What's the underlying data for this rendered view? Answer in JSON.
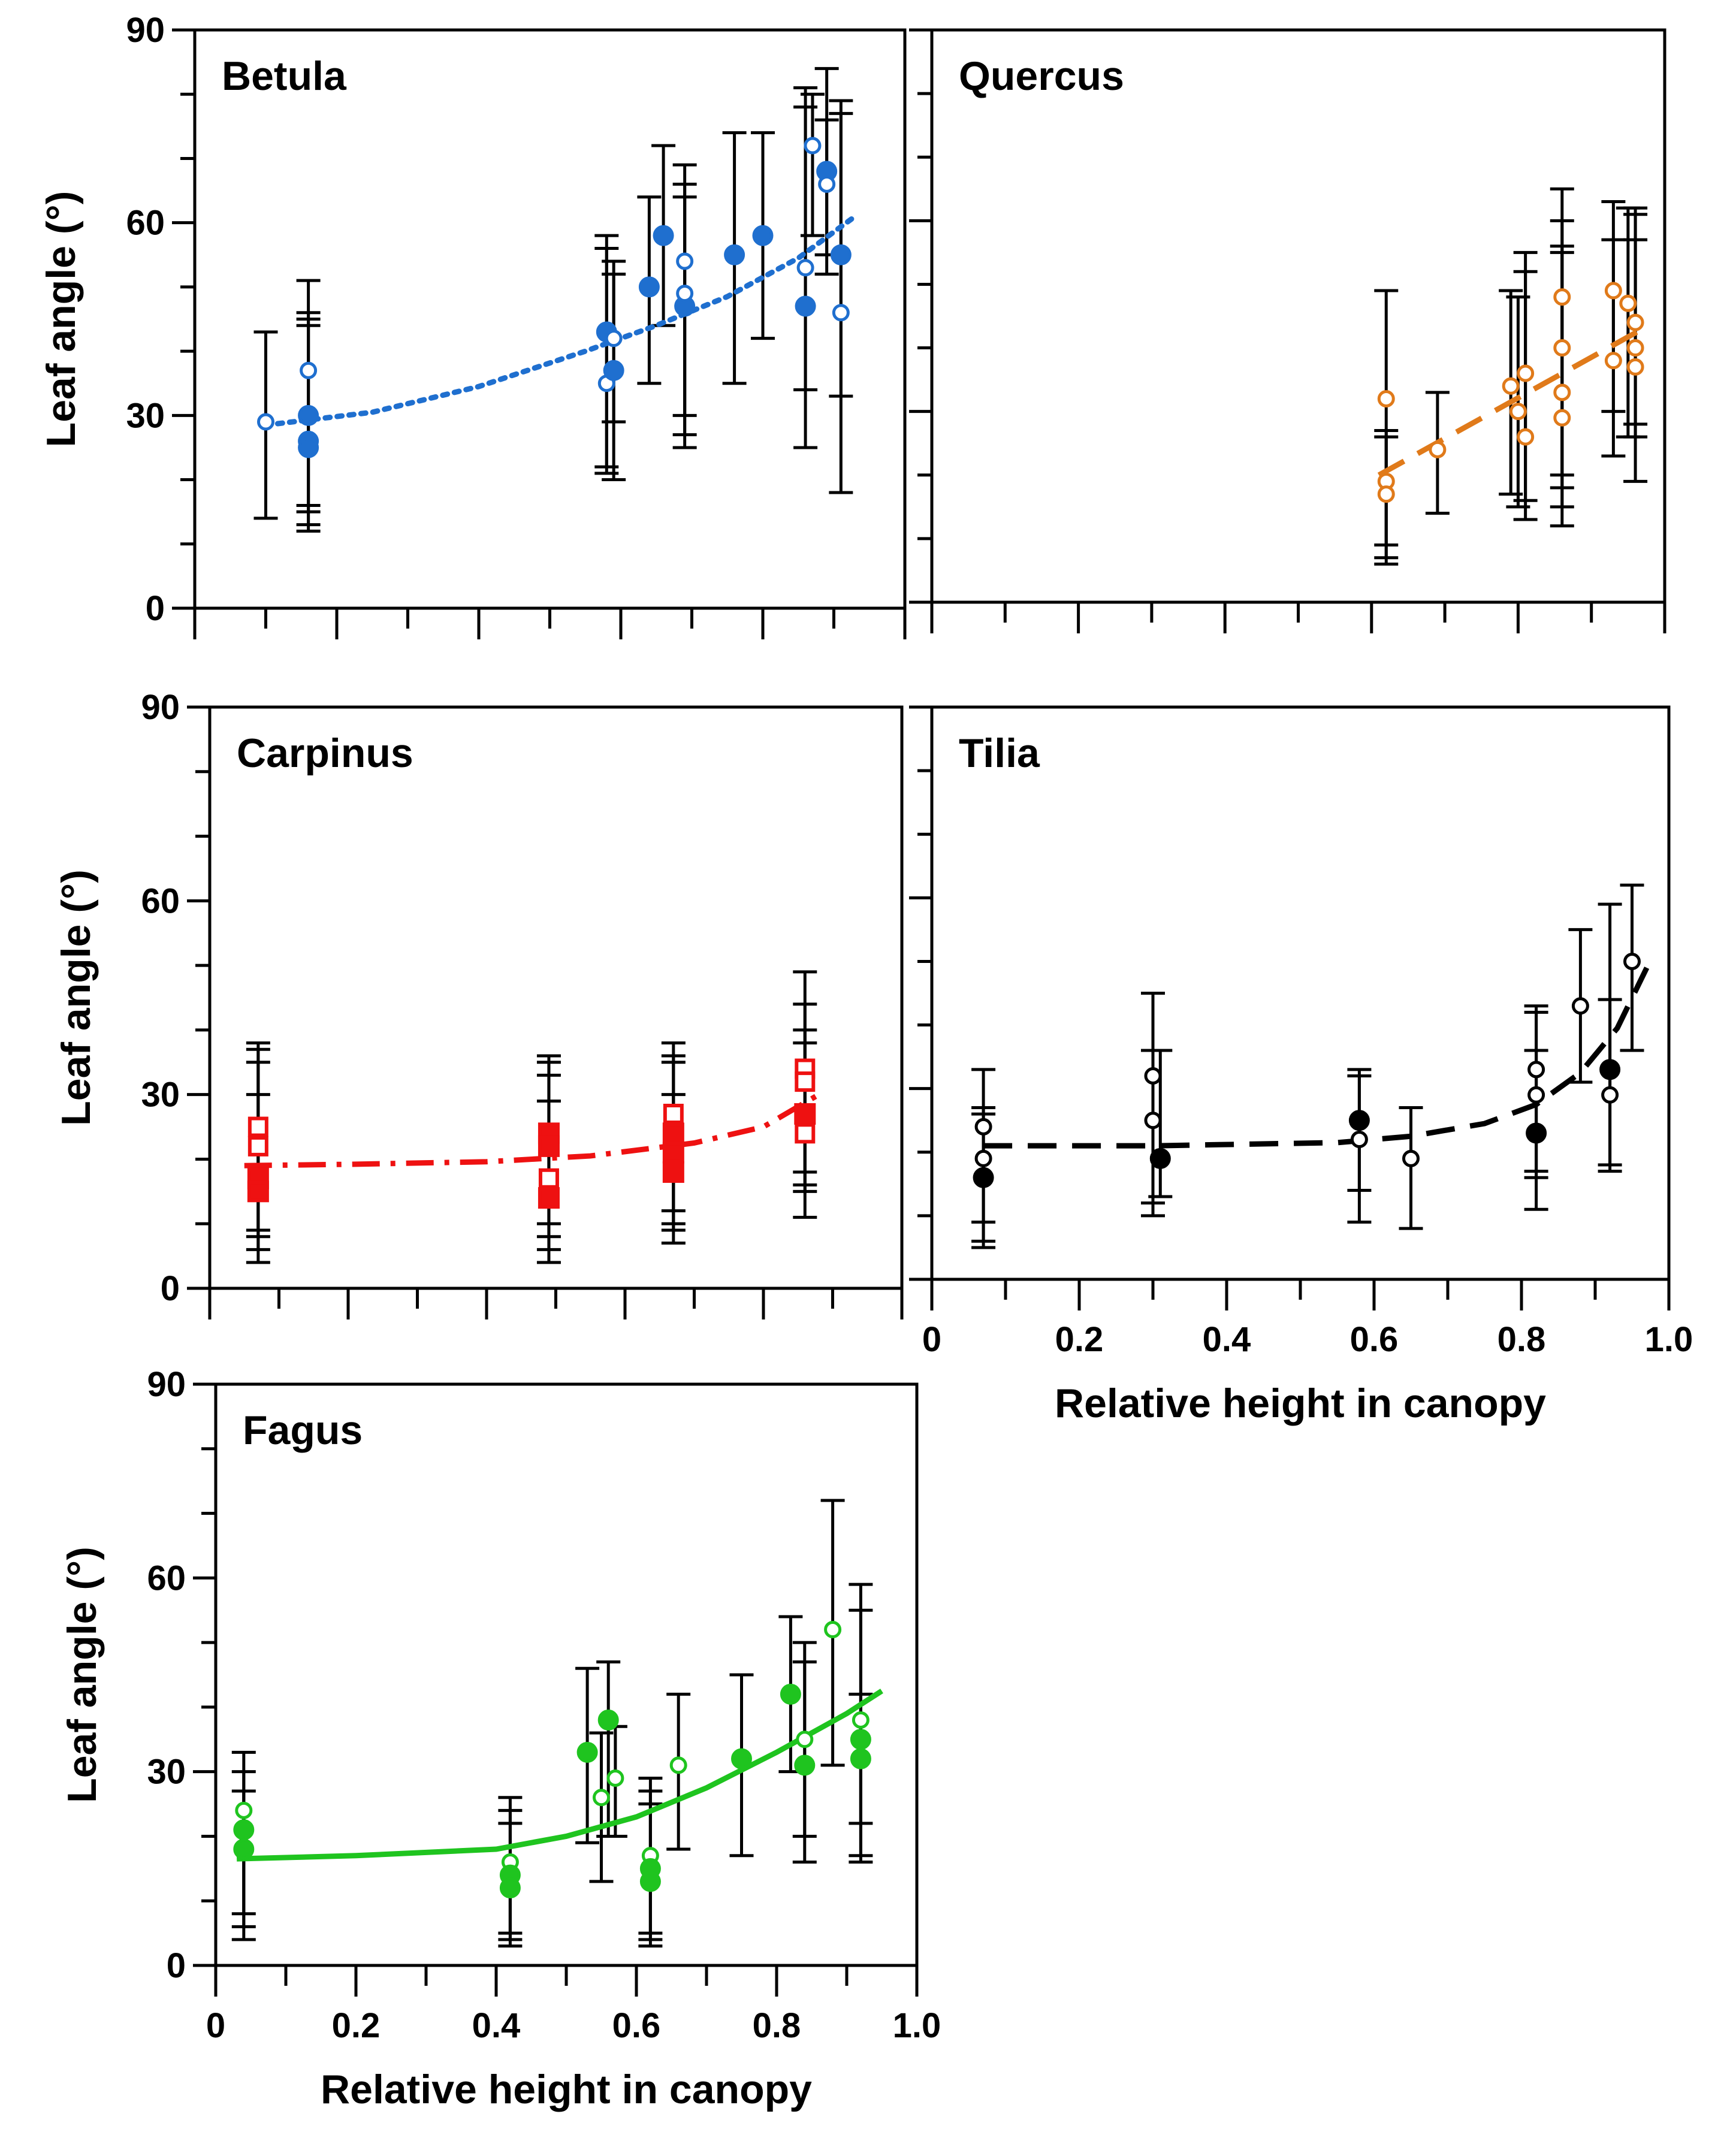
{
  "chart_data": [
    {
      "type": "scatter",
      "title": "Betula",
      "xlabel": "",
      "ylabel": "Leaf angle (°)",
      "xlim": [
        0,
        1.0
      ],
      "ylim": [
        0,
        90
      ],
      "yticks": [
        0,
        30,
        60,
        90
      ],
      "xticks": [],
      "grid": false,
      "colors": {
        "marker": "#1f6fcf",
        "error": "#000000"
      },
      "fit_style": "dotted",
      "points": [
        {
          "x": 0.1,
          "y": 29,
          "lo": 14,
          "hi": 43,
          "filled": false
        },
        {
          "x": 0.16,
          "y": 37,
          "lo": 16,
          "hi": 51,
          "filled": false
        },
        {
          "x": 0.16,
          "y": 30,
          "lo": 13,
          "hi": 46,
          "filled": true
        },
        {
          "x": 0.16,
          "y": 26,
          "lo": 15,
          "hi": 45,
          "filled": true
        },
        {
          "x": 0.16,
          "y": 25,
          "lo": 12,
          "hi": 44,
          "filled": true
        },
        {
          "x": 0.58,
          "y": 43,
          "lo": 22,
          "hi": 58,
          "filled": true
        },
        {
          "x": 0.58,
          "y": 35,
          "lo": 21,
          "hi": 56,
          "filled": false
        },
        {
          "x": 0.59,
          "y": 37,
          "lo": 20,
          "hi": 54,
          "filled": true
        },
        {
          "x": 0.59,
          "y": 42,
          "lo": 29,
          "hi": 52,
          "filled": false
        },
        {
          "x": 0.64,
          "y": 50,
          "lo": 35,
          "hi": 64,
          "filled": true
        },
        {
          "x": 0.66,
          "y": 58,
          "lo": 44,
          "hi": 72,
          "filled": true
        },
        {
          "x": 0.69,
          "y": 47,
          "lo": 25,
          "hi": 69,
          "filled": true
        },
        {
          "x": 0.69,
          "y": 54,
          "lo": 27,
          "hi": 64,
          "filled": false
        },
        {
          "x": 0.69,
          "y": 49,
          "lo": 30,
          "hi": 66,
          "filled": false
        },
        {
          "x": 0.76,
          "y": 55,
          "lo": 35,
          "hi": 74,
          "filled": true
        },
        {
          "x": 0.8,
          "y": 58,
          "lo": 42,
          "hi": 74,
          "filled": true
        },
        {
          "x": 0.86,
          "y": 53,
          "lo": 25,
          "hi": 81,
          "filled": false
        },
        {
          "x": 0.86,
          "y": 47,
          "lo": 34,
          "hi": 78,
          "filled": true
        },
        {
          "x": 0.87,
          "y": 72,
          "lo": 58,
          "hi": 80,
          "filled": false
        },
        {
          "x": 0.89,
          "y": 68,
          "lo": 52,
          "hi": 84,
          "filled": true
        },
        {
          "x": 0.89,
          "y": 66,
          "lo": 55,
          "hi": 76,
          "filled": false
        },
        {
          "x": 0.91,
          "y": 55,
          "lo": 33,
          "hi": 77,
          "filled": true
        },
        {
          "x": 0.91,
          "y": 46,
          "lo": 18,
          "hi": 79,
          "filled": false
        }
      ],
      "fit": {
        "x": [
          0.1,
          0.25,
          0.4,
          0.55,
          0.65,
          0.75,
          0.85,
          0.93
        ],
        "y": [
          28.5,
          30.5,
          34.5,
          40,
          44,
          48.5,
          54.5,
          61
        ]
      }
    },
    {
      "type": "scatter",
      "title": "Quercus",
      "xlabel": "",
      "ylabel": "",
      "xlim": [
        0,
        1.0
      ],
      "ylim": [
        0,
        90
      ],
      "yticks": [],
      "xticks": [],
      "grid": false,
      "colors": {
        "marker": "#e07a1a",
        "error": "#000000"
      },
      "fit_style": "dashed",
      "points": [
        {
          "x": 0.62,
          "y": 32,
          "lo": 6,
          "hi": 49,
          "filled": false
        },
        {
          "x": 0.62,
          "y": 19,
          "lo": 9,
          "hi": 27,
          "filled": false
        },
        {
          "x": 0.62,
          "y": 17,
          "lo": 7,
          "hi": 26,
          "filled": false
        },
        {
          "x": 0.69,
          "y": 24,
          "lo": 14,
          "hi": 33,
          "filled": false
        },
        {
          "x": 0.79,
          "y": 34,
          "lo": 17,
          "hi": 49,
          "filled": false
        },
        {
          "x": 0.8,
          "y": 30,
          "lo": 15,
          "hi": 48,
          "filled": false
        },
        {
          "x": 0.81,
          "y": 36,
          "lo": 16,
          "hi": 55,
          "filled": false
        },
        {
          "x": 0.81,
          "y": 26,
          "lo": 13,
          "hi": 52,
          "filled": false
        },
        {
          "x": 0.86,
          "y": 48,
          "lo": 12,
          "hi": 65,
          "filled": false
        },
        {
          "x": 0.86,
          "y": 40,
          "lo": 20,
          "hi": 60,
          "filled": false
        },
        {
          "x": 0.86,
          "y": 33,
          "lo": 18,
          "hi": 56,
          "filled": false
        },
        {
          "x": 0.86,
          "y": 29,
          "lo": 15,
          "hi": 55,
          "filled": false
        },
        {
          "x": 0.93,
          "y": 49,
          "lo": 23,
          "hi": 63,
          "filled": false
        },
        {
          "x": 0.93,
          "y": 38,
          "lo": 30,
          "hi": 57,
          "filled": false
        },
        {
          "x": 0.95,
          "y": 47,
          "lo": 26,
          "hi": 62,
          "filled": false
        },
        {
          "x": 0.96,
          "y": 44,
          "lo": 19,
          "hi": 62,
          "filled": false
        },
        {
          "x": 0.96,
          "y": 40,
          "lo": 28,
          "hi": 61,
          "filled": false
        },
        {
          "x": 0.96,
          "y": 37,
          "lo": 26,
          "hi": 57,
          "filled": false
        }
      ],
      "fit": {
        "x": [
          0.61,
          0.97
        ],
        "y": [
          20,
          43
        ]
      }
    },
    {
      "type": "scatter",
      "title": "Carpinus",
      "xlabel": "",
      "ylabel": "Leaf angle (°)",
      "xlim": [
        0,
        1.0
      ],
      "ylim": [
        0,
        90
      ],
      "yticks": [
        0,
        30,
        60,
        90
      ],
      "xticks": [],
      "grid": false,
      "colors": {
        "marker": "#ee1111",
        "error": "#000000"
      },
      "fit_style": "dashdot",
      "points": [
        {
          "x": 0.07,
          "y": 25,
          "lo": 6,
          "hi": 38,
          "filled": false
        },
        {
          "x": 0.07,
          "y": 22,
          "lo": 8,
          "hi": 35,
          "filled": false
        },
        {
          "x": 0.07,
          "y": 17,
          "lo": 4,
          "hi": 37,
          "filled": true
        },
        {
          "x": 0.07,
          "y": 15,
          "lo": 9,
          "hi": 30,
          "filled": true
        },
        {
          "x": 0.49,
          "y": 24,
          "lo": 6,
          "hi": 36,
          "filled": true
        },
        {
          "x": 0.49,
          "y": 22,
          "lo": 8,
          "hi": 33,
          "filled": true
        },
        {
          "x": 0.49,
          "y": 17,
          "lo": 4,
          "hi": 35,
          "filled": false
        },
        {
          "x": 0.49,
          "y": 14,
          "lo": 10,
          "hi": 29,
          "filled": true
        },
        {
          "x": 0.67,
          "y": 27,
          "lo": 7,
          "hi": 38,
          "filled": false
        },
        {
          "x": 0.67,
          "y": 24,
          "lo": 10,
          "hi": 36,
          "filled": true
        },
        {
          "x": 0.67,
          "y": 21,
          "lo": 9,
          "hi": 35,
          "filled": true
        },
        {
          "x": 0.67,
          "y": 18,
          "lo": 12,
          "hi": 30,
          "filled": true
        },
        {
          "x": 0.86,
          "y": 34,
          "lo": 16,
          "hi": 49,
          "filled": false
        },
        {
          "x": 0.86,
          "y": 32,
          "lo": 18,
          "hi": 44,
          "filled": false
        },
        {
          "x": 0.86,
          "y": 27,
          "lo": 11,
          "hi": 40,
          "filled": true
        },
        {
          "x": 0.86,
          "y": 24,
          "lo": 15,
          "hi": 38,
          "filled": false
        }
      ],
      "fit": {
        "x": [
          0.05,
          0.2,
          0.4,
          0.55,
          0.7,
          0.8,
          0.88
        ],
        "y": [
          19,
          19.2,
          19.6,
          20.5,
          22.5,
          25,
          30
        ]
      }
    },
    {
      "type": "scatter",
      "title": "Tilia",
      "xlabel": "Relative height in canopy",
      "ylabel": "",
      "xlim": [
        0,
        1.0
      ],
      "ylim": [
        0,
        90
      ],
      "yticks": [],
      "xticks": [
        0,
        0.2,
        0.4,
        0.6,
        0.8,
        1.0
      ],
      "xtick_labels": [
        "0",
        "0.2",
        "0.4",
        "0.6",
        "0.8",
        "1.0"
      ],
      "grid": false,
      "colors": {
        "marker": "#000000",
        "error": "#000000"
      },
      "fit_style": "dashed",
      "points": [
        {
          "x": 0.07,
          "y": 24,
          "lo": 9,
          "hi": 33,
          "filled": false
        },
        {
          "x": 0.07,
          "y": 19,
          "lo": 5,
          "hi": 26,
          "filled": false
        },
        {
          "x": 0.07,
          "y": 16,
          "lo": 6,
          "hi": 27,
          "filled": true
        },
        {
          "x": 0.3,
          "y": 32,
          "lo": 12,
          "hi": 45,
          "filled": false
        },
        {
          "x": 0.3,
          "y": 25,
          "lo": 10,
          "hi": 36,
          "filled": false
        },
        {
          "x": 0.31,
          "y": 19,
          "lo": 13,
          "hi": 36,
          "filled": true
        },
        {
          "x": 0.58,
          "y": 25,
          "lo": 9,
          "hi": 33,
          "filled": true
        },
        {
          "x": 0.58,
          "y": 22,
          "lo": 14,
          "hi": 32,
          "filled": false
        },
        {
          "x": 0.65,
          "y": 19,
          "lo": 8,
          "hi": 27,
          "filled": false
        },
        {
          "x": 0.82,
          "y": 33,
          "lo": 11,
          "hi": 43,
          "filled": false
        },
        {
          "x": 0.82,
          "y": 29,
          "lo": 16,
          "hi": 42,
          "filled": false
        },
        {
          "x": 0.82,
          "y": 23,
          "lo": 17,
          "hi": 36,
          "filled": true
        },
        {
          "x": 0.88,
          "y": 43,
          "lo": 31,
          "hi": 55,
          "filled": false
        },
        {
          "x": 0.92,
          "y": 33,
          "lo": 18,
          "hi": 59,
          "filled": true
        },
        {
          "x": 0.92,
          "y": 29,
          "lo": 17,
          "hi": 44,
          "filled": false
        },
        {
          "x": 0.95,
          "y": 50,
          "lo": 36,
          "hi": 62,
          "filled": false
        }
      ],
      "fit": {
        "x": [
          0.07,
          0.3,
          0.55,
          0.65,
          0.75,
          0.82,
          0.88,
          0.93,
          0.97
        ],
        "y": [
          21,
          21,
          21.5,
          22.5,
          24.5,
          27.5,
          32.5,
          39.5,
          49
        ]
      }
    },
    {
      "type": "scatter",
      "title": "Fagus",
      "xlabel": "Relative height in canopy",
      "ylabel": "Leaf angle (°)",
      "xlim": [
        0,
        1.0
      ],
      "ylim": [
        0,
        90
      ],
      "yticks": [
        0,
        30,
        60,
        90
      ],
      "xticks": [
        0,
        0.2,
        0.4,
        0.6,
        0.8,
        1.0
      ],
      "xtick_labels": [
        "0",
        "0.2",
        "0.4",
        "0.6",
        "0.8",
        "1.0"
      ],
      "grid": false,
      "colors": {
        "marker": "#1fc41f",
        "error": "#000000"
      },
      "fit_style": "solid",
      "points": [
        {
          "x": 0.04,
          "y": 24,
          "lo": 8,
          "hi": 33,
          "filled": false
        },
        {
          "x": 0.04,
          "y": 21,
          "lo": 4,
          "hi": 30,
          "filled": true
        },
        {
          "x": 0.04,
          "y": 18,
          "lo": 6,
          "hi": 27,
          "filled": true
        },
        {
          "x": 0.42,
          "y": 16,
          "lo": 5,
          "hi": 26,
          "filled": false
        },
        {
          "x": 0.42,
          "y": 14,
          "lo": 3,
          "hi": 24,
          "filled": true
        },
        {
          "x": 0.42,
          "y": 12,
          "lo": 4,
          "hi": 22,
          "filled": true
        },
        {
          "x": 0.53,
          "y": 33,
          "lo": 19,
          "hi": 46,
          "filled": true
        },
        {
          "x": 0.55,
          "y": 26,
          "lo": 13,
          "hi": 36,
          "filled": false
        },
        {
          "x": 0.56,
          "y": 38,
          "lo": 20,
          "hi": 47,
          "filled": true
        },
        {
          "x": 0.57,
          "y": 29,
          "lo": 20,
          "hi": 37,
          "filled": false
        },
        {
          "x": 0.62,
          "y": 17,
          "lo": 4,
          "hi": 29,
          "filled": false
        },
        {
          "x": 0.62,
          "y": 15,
          "lo": 3,
          "hi": 27,
          "filled": true
        },
        {
          "x": 0.62,
          "y": 13,
          "lo": 5,
          "hi": 25,
          "filled": true
        },
        {
          "x": 0.66,
          "y": 31,
          "lo": 18,
          "hi": 42,
          "filled": false
        },
        {
          "x": 0.75,
          "y": 32,
          "lo": 17,
          "hi": 45,
          "filled": true
        },
        {
          "x": 0.82,
          "y": 42,
          "lo": 30,
          "hi": 54,
          "filled": true
        },
        {
          "x": 0.84,
          "y": 35,
          "lo": 16,
          "hi": 50,
          "filled": false
        },
        {
          "x": 0.84,
          "y": 31,
          "lo": 20,
          "hi": 47,
          "filled": true
        },
        {
          "x": 0.88,
          "y": 52,
          "lo": 31,
          "hi": 72,
          "filled": false
        },
        {
          "x": 0.92,
          "y": 38,
          "lo": 17,
          "hi": 59,
          "filled": false
        },
        {
          "x": 0.92,
          "y": 35,
          "lo": 16,
          "hi": 55,
          "filled": true
        },
        {
          "x": 0.92,
          "y": 32,
          "lo": 22,
          "hi": 42,
          "filled": true
        }
      ],
      "fit": {
        "x": [
          0.03,
          0.2,
          0.4,
          0.5,
          0.6,
          0.7,
          0.8,
          0.9,
          0.95
        ],
        "y": [
          16.5,
          17,
          18,
          20,
          23,
          27.5,
          33,
          39,
          42.5
        ]
      }
    }
  ]
}
